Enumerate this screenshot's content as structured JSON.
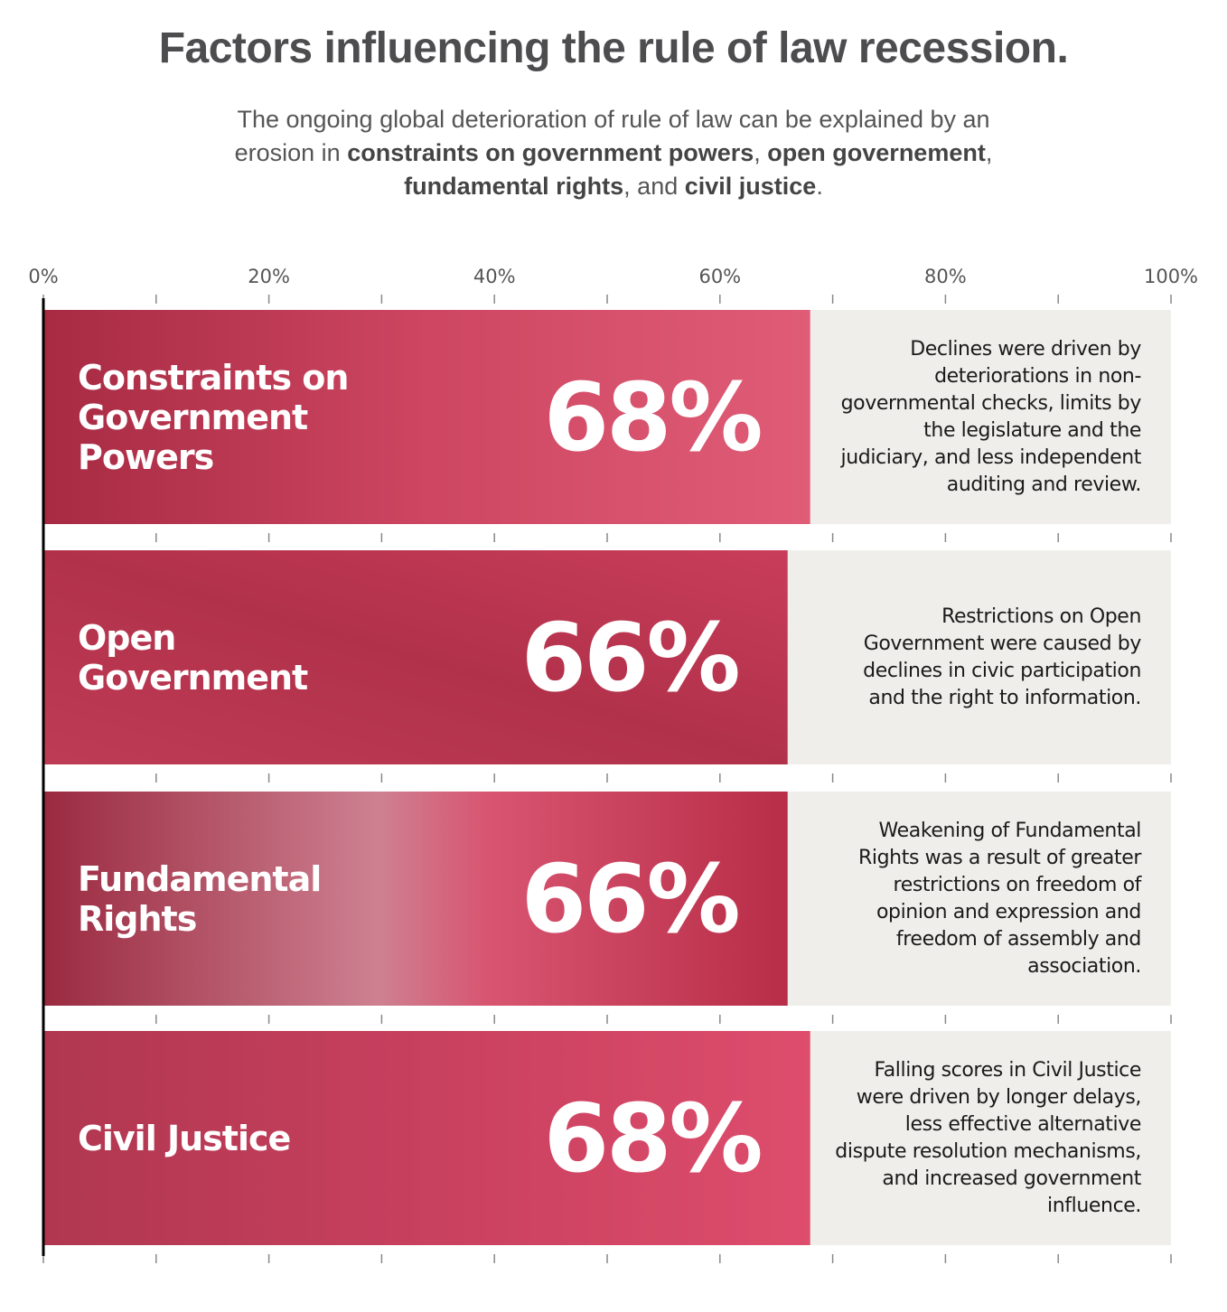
{
  "chart_data": {
    "type": "bar",
    "orientation": "horizontal",
    "title": "Factors influencing the rule of law recession.",
    "subtitle": [
      {
        "text": "The ongoing global deterioration of rule of law can be explained by an erosion in ",
        "bold": false
      },
      {
        "text": "constraints on government powers",
        "bold": true
      },
      {
        "text": ", ",
        "bold": false
      },
      {
        "text": "open governement",
        "bold": true
      },
      {
        "text": ", ",
        "bold": false
      },
      {
        "text": "fundamental rights",
        "bold": true
      },
      {
        "text": ", and ",
        "bold": false
      },
      {
        "text": "civil justice",
        "bold": true
      },
      {
        "text": ".",
        "bold": false
      }
    ],
    "categories": [
      "Constraints on Government Powers",
      "Open Government",
      "Fundamental Rights",
      "Civil Justice"
    ],
    "values": [
      68,
      66,
      66,
      68
    ],
    "value_labels": [
      "68%",
      "66%",
      "66%",
      "68%"
    ],
    "annotations": [
      "Declines were driven by deteriorations in non-governmental checks, limits by the legislature and the judiciary, and less independent auditing and review.",
      "Restrictions on Open Government were caused by declines in civic participation and the right to information.",
      "Weakening of Fundamental Rights was a result of greater restrictions on freedom of opinion and expression and freedom of assembly and association.",
      "Falling scores in Civil Justice were driven by longer delays, less effective alternative dispute resolution mechanisms, and increased government influence."
    ],
    "color": "#d6405e",
    "xlim": [
      0,
      100
    ],
    "xticks": [
      {
        "value": 0,
        "label": "0%"
      },
      {
        "value": 20,
        "label": "20%"
      },
      {
        "value": 40,
        "label": "40%"
      },
      {
        "value": 60,
        "label": "60%"
      },
      {
        "value": 80,
        "label": "80%"
      },
      {
        "value": 100,
        "label": "100%"
      }
    ],
    "xminorticks": [
      10,
      30,
      50,
      70,
      90
    ]
  }
}
